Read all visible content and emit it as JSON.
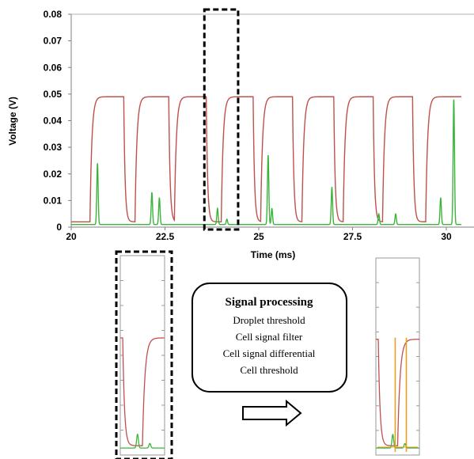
{
  "chart_data": {
    "type": "line",
    "title": "",
    "xlabel": "Time (ms)",
    "ylabel": "Voltage (V)",
    "xlim": [
      20,
      30.4
    ],
    "ylim": [
      0,
      0.08
    ],
    "x_ticks": [
      "20",
      "22.5",
      "25",
      "27.5",
      "30"
    ],
    "y_ticks": [
      "0",
      "0.01",
      "0.02",
      "0.03",
      "0.04",
      "0.05",
      "0.06",
      "0.07",
      "0.08"
    ],
    "grid": false,
    "legend": "none",
    "series": [
      {
        "color": "#c0504d",
        "style": "droplet-pulses",
        "baseline": 0.002,
        "plateau": 0.049,
        "pulses": [
          {
            "start": 20.5,
            "end": 21.4
          },
          {
            "start": 21.7,
            "end": 22.6
          },
          {
            "start": 22.75,
            "end": 23.6
          },
          {
            "start": 24.0,
            "end": 24.85
          },
          {
            "start": 25.05,
            "end": 25.9
          },
          {
            "start": 26.15,
            "end": 27.0
          },
          {
            "start": 27.25,
            "end": 28.05
          },
          {
            "start": 28.3,
            "end": 29.1
          },
          {
            "start": 29.45,
            "end": 30.4
          }
        ]
      },
      {
        "color": "#3cb43c",
        "style": "cell-spikes",
        "baseline": 0.001,
        "spikes": [
          {
            "x": 20.7,
            "y": 0.024
          },
          {
            "x": 22.15,
            "y": 0.013
          },
          {
            "x": 22.35,
            "y": 0.011
          },
          {
            "x": 23.9,
            "y": 0.007
          },
          {
            "x": 24.15,
            "y": 0.003
          },
          {
            "x": 25.25,
            "y": 0.027
          },
          {
            "x": 25.35,
            "y": 0.007
          },
          {
            "x": 26.95,
            "y": 0.015
          },
          {
            "x": 28.2,
            "y": 0.005
          },
          {
            "x": 28.65,
            "y": 0.005
          },
          {
            "x": 29.85,
            "y": 0.011
          },
          {
            "x": 30.2,
            "y": 0.048
          }
        ]
      }
    ],
    "highlight": {
      "x_start": 23.55,
      "x_end": 24.45
    }
  },
  "processing_box": {
    "title": "Signal processing",
    "steps": [
      "Droplet threshold",
      "Cell signal filter",
      "Cell signal differential",
      "Cell threshold"
    ]
  },
  "colors": {
    "droplet_signal": "#c0504d",
    "cell_signal": "#3cb43c",
    "threshold_marker": "#e8a020",
    "axis": "#808080"
  }
}
